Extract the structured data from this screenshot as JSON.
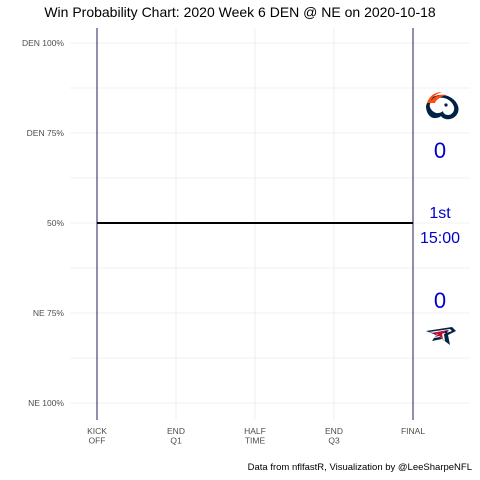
{
  "title": "Win Probability Chart: 2020 Week 6 DEN @ NE on 2020-10-18",
  "caption": "Data from nflfastR, Visualization by @LeeSharpeNFL",
  "colors": {
    "accent": "#0000cc",
    "wp_line": "#000000",
    "gridline": "#ebebeb",
    "marker_line": "#1f1f5c",
    "broncos_orange": "#fb4f14",
    "broncos_navy": "#002244",
    "patriots_navy": "#002244",
    "patriots_red": "#c60c30"
  },
  "teams": {
    "away": {
      "abbr": "DEN",
      "logo_icon": "broncos-logo-icon",
      "score": "0"
    },
    "home": {
      "abbr": "NE",
      "logo_icon": "patriots-logo-icon",
      "score": "0"
    }
  },
  "game_state": {
    "quarter": "1st",
    "clock": "15:00"
  },
  "chart_data": {
    "type": "line",
    "title": "Win Probability Chart: 2020 Week 6 DEN @ NE on 2020-10-18",
    "xlabel": "",
    "ylabel": "",
    "xlim": [
      0,
      4
    ],
    "ylim": [
      0,
      1
    ],
    "y_ticks": [
      {
        "value": 1.0,
        "label": "DEN 100%"
      },
      {
        "value": 0.75,
        "label": "DEN 75%"
      },
      {
        "value": 0.5,
        "label": "50%"
      },
      {
        "value": 0.25,
        "label": "NE 75%"
      },
      {
        "value": 0.0,
        "label": "NE 100%"
      }
    ],
    "x_ticks": [
      {
        "value": 0,
        "label": [
          "KICK",
          "OFF"
        ]
      },
      {
        "value": 1,
        "label": [
          "END",
          "Q1"
        ]
      },
      {
        "value": 2,
        "label": [
          "HALF",
          "TIME"
        ]
      },
      {
        "value": 3,
        "label": [
          "END",
          "Q3"
        ]
      },
      {
        "value": 4,
        "label": [
          "FINAL"
        ]
      }
    ],
    "grid": true,
    "series": [
      {
        "x": [
          0,
          4
        ],
        "y": [
          0.5,
          0.5
        ]
      }
    ]
  }
}
